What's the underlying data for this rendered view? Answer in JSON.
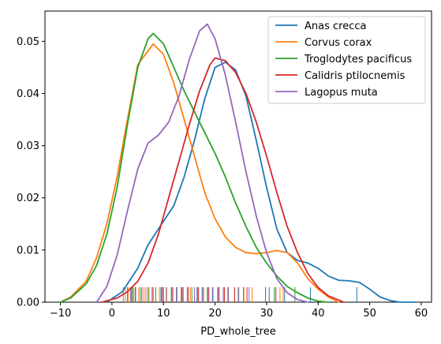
{
  "chart_data": {
    "type": "line",
    "xlabel": "PD_whole_tree",
    "ylabel": "",
    "xlim": [
      -13,
      62
    ],
    "ylim": [
      0,
      0.0558
    ],
    "xticks": [
      -10,
      0,
      10,
      20,
      30,
      40,
      50,
      60
    ],
    "xtick_labels": [
      "−10",
      "0",
      "10",
      "20",
      "30",
      "40",
      "50",
      "60"
    ],
    "yticks": [
      0.0,
      0.01,
      0.02,
      0.03,
      0.04,
      0.05
    ],
    "ytick_labels": [
      "0.00",
      "0.01",
      "0.02",
      "0.03",
      "0.04",
      "0.05"
    ],
    "grid": false,
    "legend_position": "top-right",
    "series": [
      {
        "name": "Anas crecca",
        "color": "#1f77b4",
        "points": [
          [
            -1,
            0.0
          ],
          [
            2,
            0.002
          ],
          [
            5,
            0.0065
          ],
          [
            7,
            0.011
          ],
          [
            9,
            0.014
          ],
          [
            12,
            0.0185
          ],
          [
            14,
            0.024
          ],
          [
            16,
            0.031
          ],
          [
            18,
            0.039
          ],
          [
            20,
            0.045
          ],
          [
            22,
            0.046
          ],
          [
            24,
            0.0445
          ],
          [
            26,
            0.0395
          ],
          [
            28,
            0.031
          ],
          [
            30,
            0.022
          ],
          [
            32,
            0.014
          ],
          [
            34,
            0.0095
          ],
          [
            36,
            0.008
          ],
          [
            38,
            0.0075
          ],
          [
            40,
            0.0065
          ],
          [
            42,
            0.005
          ],
          [
            44,
            0.0042
          ],
          [
            46,
            0.0041
          ],
          [
            48,
            0.0038
          ],
          [
            50,
            0.0025
          ],
          [
            52,
            0.001
          ],
          [
            54,
            0.0003
          ],
          [
            56,
            0.0
          ],
          [
            59,
            0.0
          ]
        ],
        "rug": [
          4.5,
          9.5,
          12.5,
          16.5,
          17.5,
          19.5,
          22.5,
          25.5,
          30.5,
          33.5,
          38.5,
          47.5
        ]
      },
      {
        "name": "Corvus corax",
        "color": "#ff7f0e",
        "points": [
          [
            -10,
            0.0
          ],
          [
            -8,
            0.001
          ],
          [
            -5,
            0.004
          ],
          [
            -3,
            0.0085
          ],
          [
            -1,
            0.015
          ],
          [
            1,
            0.024
          ],
          [
            3,
            0.035
          ],
          [
            5,
            0.0455
          ],
          [
            8,
            0.0495
          ],
          [
            10,
            0.0475
          ],
          [
            12,
            0.042
          ],
          [
            14,
            0.035
          ],
          [
            16,
            0.028
          ],
          [
            18,
            0.021
          ],
          [
            20,
            0.016
          ],
          [
            22,
            0.0125
          ],
          [
            24,
            0.0105
          ],
          [
            26,
            0.0095
          ],
          [
            28,
            0.0093
          ],
          [
            30,
            0.0095
          ],
          [
            32,
            0.0099
          ],
          [
            34,
            0.0095
          ],
          [
            36,
            0.0075
          ],
          [
            38,
            0.0045
          ],
          [
            40,
            0.0025
          ],
          [
            42,
            0.001
          ],
          [
            44,
            0.0
          ]
        ],
        "rug": [
          2.6,
          3.2,
          4.2,
          5.2,
          6.2,
          7.2,
          9.2,
          10.5,
          12.6,
          13.4,
          15.2,
          17.8,
          19.6,
          21.8,
          23.8,
          25.6,
          27.2,
          32.6,
          33.2
        ]
      },
      {
        "name": "Troglodytes pacificus",
        "color": "#2ca02c",
        "points": [
          [
            -10,
            0.0
          ],
          [
            -8,
            0.0008
          ],
          [
            -5,
            0.0035
          ],
          [
            -3,
            0.007
          ],
          [
            -1,
            0.013
          ],
          [
            1,
            0.022
          ],
          [
            3,
            0.034
          ],
          [
            5,
            0.045
          ],
          [
            7,
            0.0505
          ],
          [
            8,
            0.0515
          ],
          [
            10,
            0.0495
          ],
          [
            12,
            0.045
          ],
          [
            14,
            0.0405
          ],
          [
            16,
            0.0365
          ],
          [
            18,
            0.0325
          ],
          [
            20,
            0.0285
          ],
          [
            22,
            0.024
          ],
          [
            24,
            0.019
          ],
          [
            26,
            0.0145
          ],
          [
            28,
            0.0105
          ],
          [
            30,
            0.0075
          ],
          [
            32,
            0.005
          ],
          [
            34,
            0.003
          ],
          [
            36,
            0.0018
          ],
          [
            38,
            0.0008
          ],
          [
            40,
            0.0002
          ],
          [
            42,
            0.0
          ]
        ],
        "rug": [
          3.0,
          4.0,
          5.5,
          7.0,
          8.5,
          10.0,
          11.5,
          13.5,
          15.5,
          18.5,
          20.5,
          22.5,
          24.5,
          31.5,
          35.5
        ]
      },
      {
        "name": "Calidris ptilocnemis",
        "color": "#d62728",
        "points": [
          [
            -2,
            0.0
          ],
          [
            1,
            0.0008
          ],
          [
            3,
            0.002
          ],
          [
            5,
            0.004
          ],
          [
            7,
            0.0075
          ],
          [
            9,
            0.013
          ],
          [
            11,
            0.02
          ],
          [
            13,
            0.027
          ],
          [
            15,
            0.034
          ],
          [
            17,
            0.0405
          ],
          [
            19,
            0.0455
          ],
          [
            20,
            0.0468
          ],
          [
            22,
            0.0463
          ],
          [
            24,
            0.044
          ],
          [
            26,
            0.04
          ],
          [
            28,
            0.0345
          ],
          [
            30,
            0.028
          ],
          [
            32,
            0.021
          ],
          [
            34,
            0.0145
          ],
          [
            36,
            0.0095
          ],
          [
            38,
            0.0055
          ],
          [
            40,
            0.0028
          ],
          [
            42,
            0.0012
          ],
          [
            44,
            0.0004
          ],
          [
            45,
            0.0
          ]
        ],
        "rug": [
          3.8,
          5.8,
          7.8,
          9.8,
          11.8,
          13.8,
          14.8,
          16.8,
          18.8,
          20.8,
          21.8,
          23.8,
          26.2,
          29.8,
          31.8
        ]
      },
      {
        "name": "Lagopus muta",
        "color": "#9467bd",
        "points": [
          [
            -3,
            0.0
          ],
          [
            -1,
            0.003
          ],
          [
            1,
            0.009
          ],
          [
            3,
            0.0175
          ],
          [
            5,
            0.0255
          ],
          [
            7,
            0.0305
          ],
          [
            9,
            0.032
          ],
          [
            11,
            0.0345
          ],
          [
            13,
            0.0395
          ],
          [
            15,
            0.0465
          ],
          [
            17,
            0.052
          ],
          [
            18.5,
            0.0533
          ],
          [
            20,
            0.0505
          ],
          [
            22,
            0.0435
          ],
          [
            24,
            0.0345
          ],
          [
            26,
            0.025
          ],
          [
            28,
            0.0165
          ],
          [
            30,
            0.0095
          ],
          [
            32,
            0.0045
          ],
          [
            34,
            0.0018
          ],
          [
            36,
            0.0005
          ],
          [
            38,
            0.0
          ]
        ],
        "rug": [
          2.2,
          3.6,
          4.6,
          6.6,
          8.0,
          9.6,
          10.6,
          11.6,
          12.6,
          13.6,
          14.6,
          16.0,
          16.6,
          17.6,
          18.6,
          19.6,
          20.6,
          21.6,
          22.6,
          24.6,
          26.6
        ]
      }
    ]
  }
}
